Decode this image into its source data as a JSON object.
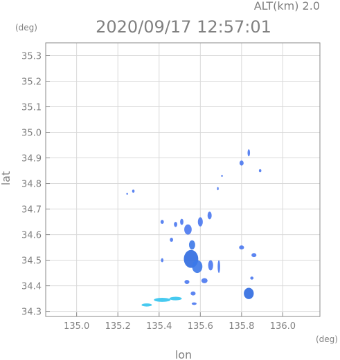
{
  "header": {
    "altitude": "ALT(km)  2.0",
    "datetime": "2020/09/17 12:57:01"
  },
  "chart_data": {
    "type": "heatmap",
    "title": "",
    "xlabel": "lon",
    "ylabel": "lat",
    "x_unit": "(deg)",
    "y_unit": "(deg)",
    "xlim": [
      134.85,
      136.18
    ],
    "ylim": [
      34.28,
      35.35
    ],
    "x_ticks": [
      {
        "v": 135.0,
        "label": "135.0"
      },
      {
        "v": 135.2,
        "label": "135.2"
      },
      {
        "v": 135.4,
        "label": "135.4"
      },
      {
        "v": 135.6,
        "label": "135.6"
      },
      {
        "v": 135.8,
        "label": "135.8"
      },
      {
        "v": 136.0,
        "label": "136.0"
      }
    ],
    "y_ticks": [
      {
        "v": 34.3,
        "label": "34.3"
      },
      {
        "v": 34.4,
        "label": "34.4"
      },
      {
        "v": 34.5,
        "label": "34.5"
      },
      {
        "v": 34.6,
        "label": "34.6"
      },
      {
        "v": 34.7,
        "label": "34.7"
      },
      {
        "v": 34.8,
        "label": "34.8"
      },
      {
        "v": 34.9,
        "label": "34.9"
      },
      {
        "v": 35.0,
        "label": "35.0"
      },
      {
        "v": 35.1,
        "label": "35.1"
      },
      {
        "v": 35.2,
        "label": "35.2"
      },
      {
        "v": 35.3,
        "label": "35.3"
      }
    ],
    "echoes": [
      {
        "lon": 135.555,
        "lat": 34.505,
        "level": "strong",
        "rlon": 0.035,
        "rlat": 0.035
      },
      {
        "lon": 135.585,
        "lat": 34.475,
        "level": "moderate",
        "rlon": 0.025,
        "rlat": 0.025
      },
      {
        "lon": 135.56,
        "lat": 34.56,
        "level": "moderate",
        "rlon": 0.015,
        "rlat": 0.018
      },
      {
        "lon": 135.54,
        "lat": 34.62,
        "level": "weak",
        "rlon": 0.018,
        "rlat": 0.02
      },
      {
        "lon": 135.6,
        "lat": 34.65,
        "level": "weak",
        "rlon": 0.012,
        "rlat": 0.018
      },
      {
        "lon": 135.645,
        "lat": 34.675,
        "level": "weak",
        "rlon": 0.01,
        "rlat": 0.015
      },
      {
        "lon": 135.48,
        "lat": 34.64,
        "level": "weak",
        "rlon": 0.008,
        "rlat": 0.01
      },
      {
        "lon": 135.51,
        "lat": 34.65,
        "level": "weak",
        "rlon": 0.008,
        "rlat": 0.012
      },
      {
        "lon": 135.46,
        "lat": 34.58,
        "level": "weak",
        "rlon": 0.008,
        "rlat": 0.008
      },
      {
        "lon": 135.415,
        "lat": 34.5,
        "level": "weak",
        "rlon": 0.006,
        "rlat": 0.008
      },
      {
        "lon": 135.415,
        "lat": 34.65,
        "level": "weak",
        "rlon": 0.008,
        "rlat": 0.008
      },
      {
        "lon": 135.65,
        "lat": 34.48,
        "level": "weak",
        "rlon": 0.012,
        "rlat": 0.02
      },
      {
        "lon": 135.69,
        "lat": 34.475,
        "level": "weak",
        "rlon": 0.006,
        "rlat": 0.025
      },
      {
        "lon": 135.62,
        "lat": 34.42,
        "level": "weak",
        "rlon": 0.015,
        "rlat": 0.01
      },
      {
        "lon": 135.535,
        "lat": 34.415,
        "level": "weak",
        "rlon": 0.012,
        "rlat": 0.008
      },
      {
        "lon": 135.565,
        "lat": 34.37,
        "level": "weak",
        "rlon": 0.012,
        "rlat": 0.008
      },
      {
        "lon": 135.835,
        "lat": 34.37,
        "level": "strong",
        "rlon": 0.024,
        "rlat": 0.022
      },
      {
        "lon": 135.85,
        "lat": 34.43,
        "level": "weak",
        "rlon": 0.008,
        "rlat": 0.006
      },
      {
        "lon": 135.8,
        "lat": 34.55,
        "level": "weak",
        "rlon": 0.012,
        "rlat": 0.008
      },
      {
        "lon": 135.86,
        "lat": 34.52,
        "level": "weak",
        "rlon": 0.012,
        "rlat": 0.008
      },
      {
        "lon": 135.8,
        "lat": 34.88,
        "level": "weak",
        "rlon": 0.01,
        "rlat": 0.01
      },
      {
        "lon": 135.835,
        "lat": 34.92,
        "level": "weak",
        "rlon": 0.006,
        "rlat": 0.014
      },
      {
        "lon": 135.89,
        "lat": 34.85,
        "level": "weak",
        "rlon": 0.006,
        "rlat": 0.006
      },
      {
        "lon": 135.275,
        "lat": 34.77,
        "level": "weak",
        "rlon": 0.006,
        "rlat": 0.006
      },
      {
        "lon": 135.245,
        "lat": 34.76,
        "level": "weak",
        "rlon": 0.004,
        "rlat": 0.004
      },
      {
        "lon": 135.685,
        "lat": 34.78,
        "level": "weak",
        "rlon": 0.004,
        "rlat": 0.006
      },
      {
        "lon": 135.705,
        "lat": 34.83,
        "level": "weak",
        "rlon": 0.004,
        "rlat": 0.004
      },
      {
        "lon": 135.34,
        "lat": 34.325,
        "level": "light",
        "rlon": 0.025,
        "rlat": 0.006
      },
      {
        "lon": 135.415,
        "lat": 34.345,
        "level": "light",
        "rlon": 0.04,
        "rlat": 0.008
      },
      {
        "lon": 135.48,
        "lat": 34.35,
        "level": "light",
        "rlon": 0.03,
        "rlat": 0.007
      },
      {
        "lon": 135.57,
        "lat": 34.33,
        "level": "weak",
        "rlon": 0.012,
        "rlat": 0.005
      }
    ]
  },
  "colors": {
    "strong": "#2f6ae0",
    "moderate": "#3c78e8",
    "weak": "#4a78f0",
    "light": "#33c4ee",
    "axis": "#8a8a8a",
    "grid": "#d8d8d8"
  }
}
